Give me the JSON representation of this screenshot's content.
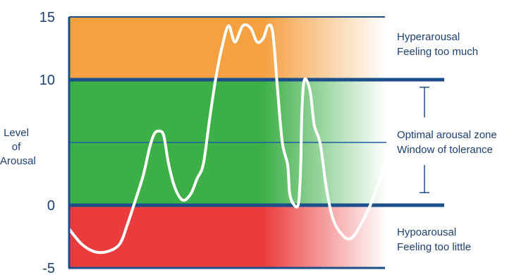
{
  "chart_data": {
    "type": "line",
    "ylabel": "Level of Arousal",
    "ylim": [
      -5,
      15
    ],
    "yticks": [
      "15",
      "10",
      "0",
      "-5"
    ],
    "grid": false,
    "zones": [
      {
        "id": "hyper",
        "from": 10,
        "to": 15,
        "color": "#f5a041",
        "lines": [
          "Hyperarousal",
          "Feeling too much"
        ]
      },
      {
        "id": "optimal",
        "from": 0,
        "to": 10,
        "color": "#3daf47",
        "lines": [
          "Optimal arousal zone",
          "Window of  tolerance"
        ]
      },
      {
        "id": "hypo",
        "from": -5,
        "to": 0,
        "color": "#ea3c3c",
        "lines": [
          "Hypoarousal",
          "Feeling too little"
        ]
      }
    ],
    "threshold_lines": [
      10,
      0
    ],
    "series": [
      {
        "color": "#ffffff",
        "points": [
          [
            0.0,
            -1.9
          ],
          [
            4.0,
            -3.1
          ],
          [
            8.0,
            -3.7
          ],
          [
            12.0,
            -3.7
          ],
          [
            16.0,
            -3.1
          ],
          [
            18.5,
            -1.5
          ],
          [
            21.0,
            0.4
          ],
          [
            23.5,
            2.4
          ],
          [
            25.5,
            4.6
          ],
          [
            27.0,
            5.7
          ],
          [
            28.7,
            5.9
          ],
          [
            30.0,
            5.5
          ],
          [
            31.5,
            3.3
          ],
          [
            33.5,
            1.4
          ],
          [
            36.0,
            0.4
          ],
          [
            38.5,
            0.9
          ],
          [
            40.5,
            2.1
          ],
          [
            42.5,
            3.3
          ],
          [
            44.5,
            6.9
          ],
          [
            46.5,
            10.2
          ],
          [
            48.5,
            12.7
          ],
          [
            50.5,
            14.3
          ],
          [
            52.5,
            13.0
          ],
          [
            55.0,
            14.3
          ],
          [
            57.5,
            14.1
          ],
          [
            59.5,
            13.0
          ],
          [
            61.5,
            13.3
          ],
          [
            63.0,
            14.3
          ],
          [
            64.5,
            13.7
          ],
          [
            66.0,
            9.2
          ],
          [
            67.5,
            5.0
          ],
          [
            69.2,
            3.2
          ],
          [
            69.8,
            1.0
          ],
          [
            71.0,
            0.1
          ],
          [
            72.6,
            0.1
          ],
          [
            73.3,
            3.0
          ],
          [
            73.7,
            7.5
          ],
          [
            74.5,
            10.0
          ],
          [
            76.3,
            9.1
          ],
          [
            77.6,
            6.4
          ],
          [
            79.5,
            4.9
          ],
          [
            81.5,
            1.3
          ],
          [
            83.7,
            -1.2
          ],
          [
            87.0,
            -2.5
          ],
          [
            89.5,
            -2.6
          ],
          [
            92.0,
            -1.7
          ],
          [
            95.0,
            -0.2
          ],
          [
            98.0,
            1.8
          ],
          [
            100.0,
            3.5
          ]
        ]
      }
    ],
    "tolerance_bracket": {
      "from": 1,
      "to": 9.4
    }
  }
}
